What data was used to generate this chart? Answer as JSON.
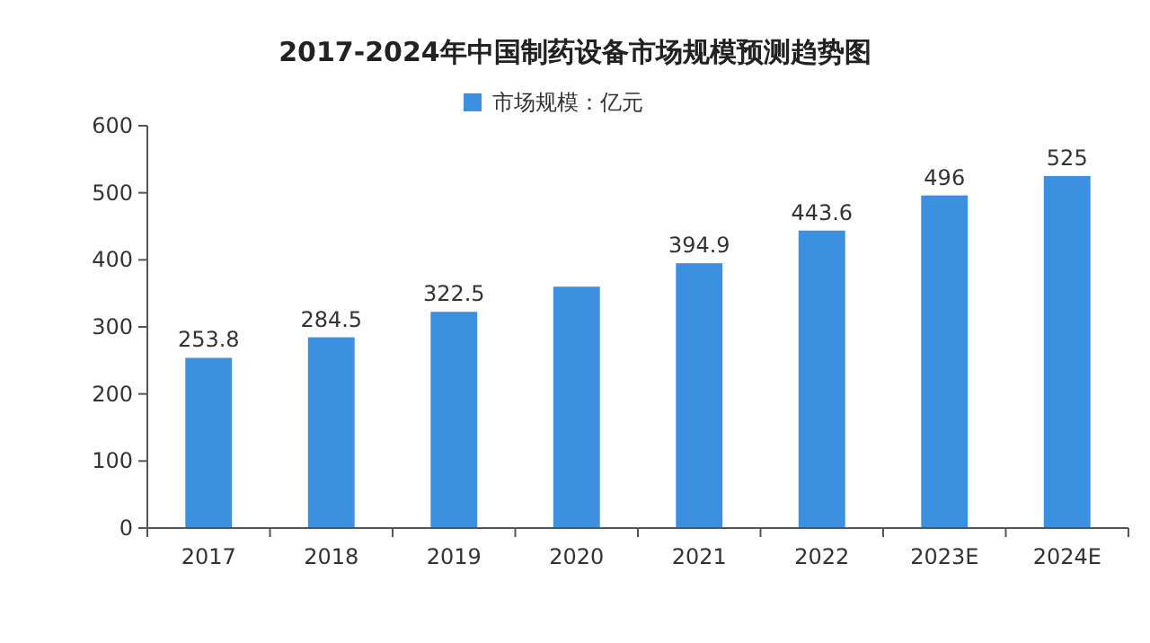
{
  "chart_data": {
    "type": "bar",
    "title": "2017-2024年中国制药设备市场规模预测趋势图",
    "categories": [
      "2017",
      "2018",
      "2019",
      "2020",
      "2021",
      "2022",
      "2023E",
      "2024E"
    ],
    "series": [
      {
        "name": "市场规模：亿元",
        "color": "#3d8fe0",
        "values": [
          253.8,
          284.5,
          322.5,
          360,
          394.9,
          443.6,
          496,
          525
        ],
        "value_labels": [
          "253.8",
          "284.5",
          "322.5",
          null,
          "394.9",
          "443.6",
          "496",
          "525"
        ]
      }
    ],
    "ylim": [
      0,
      600
    ],
    "yticks": [
      0,
      100,
      200,
      300,
      400,
      500,
      600
    ],
    "legend": "top",
    "grid": false
  }
}
